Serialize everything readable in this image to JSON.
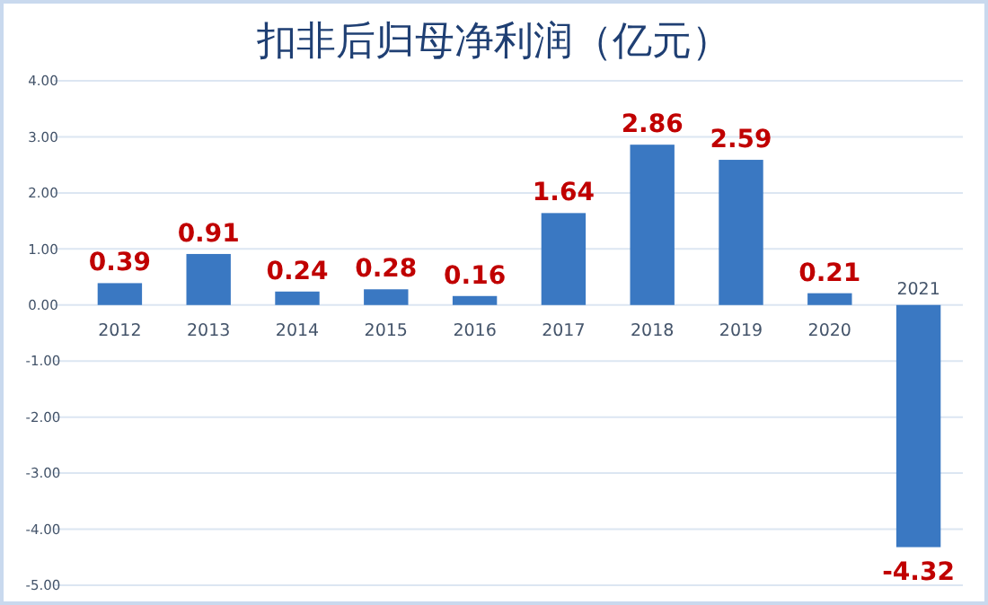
{
  "chart_data": {
    "type": "bar",
    "title": "扣非后归母净利润（亿元）",
    "categories": [
      "2012",
      "2013",
      "2014",
      "2015",
      "2016",
      "2017",
      "2018",
      "2019",
      "2020",
      "2021"
    ],
    "values": [
      0.39,
      0.91,
      0.24,
      0.28,
      0.16,
      1.64,
      2.86,
      2.59,
      0.21,
      -4.32
    ],
    "color": "#3a78c2",
    "data_labels": true,
    "grid": "y",
    "ylim": [
      -5,
      4
    ],
    "yticks": [
      {
        "value": 4,
        "label": "4.00"
      },
      {
        "value": 3,
        "label": "3.00"
      },
      {
        "value": 2,
        "label": "2.00"
      },
      {
        "value": 1,
        "label": "1.00"
      },
      {
        "value": 0,
        "label": "0.00"
      },
      {
        "value": -1,
        "label": "-1.00"
      },
      {
        "value": -2,
        "label": "-2.00"
      },
      {
        "value": -3,
        "label": "-3.00"
      },
      {
        "value": -4,
        "label": "-4.00"
      },
      {
        "value": -5,
        "label": "-5.00"
      }
    ]
  }
}
